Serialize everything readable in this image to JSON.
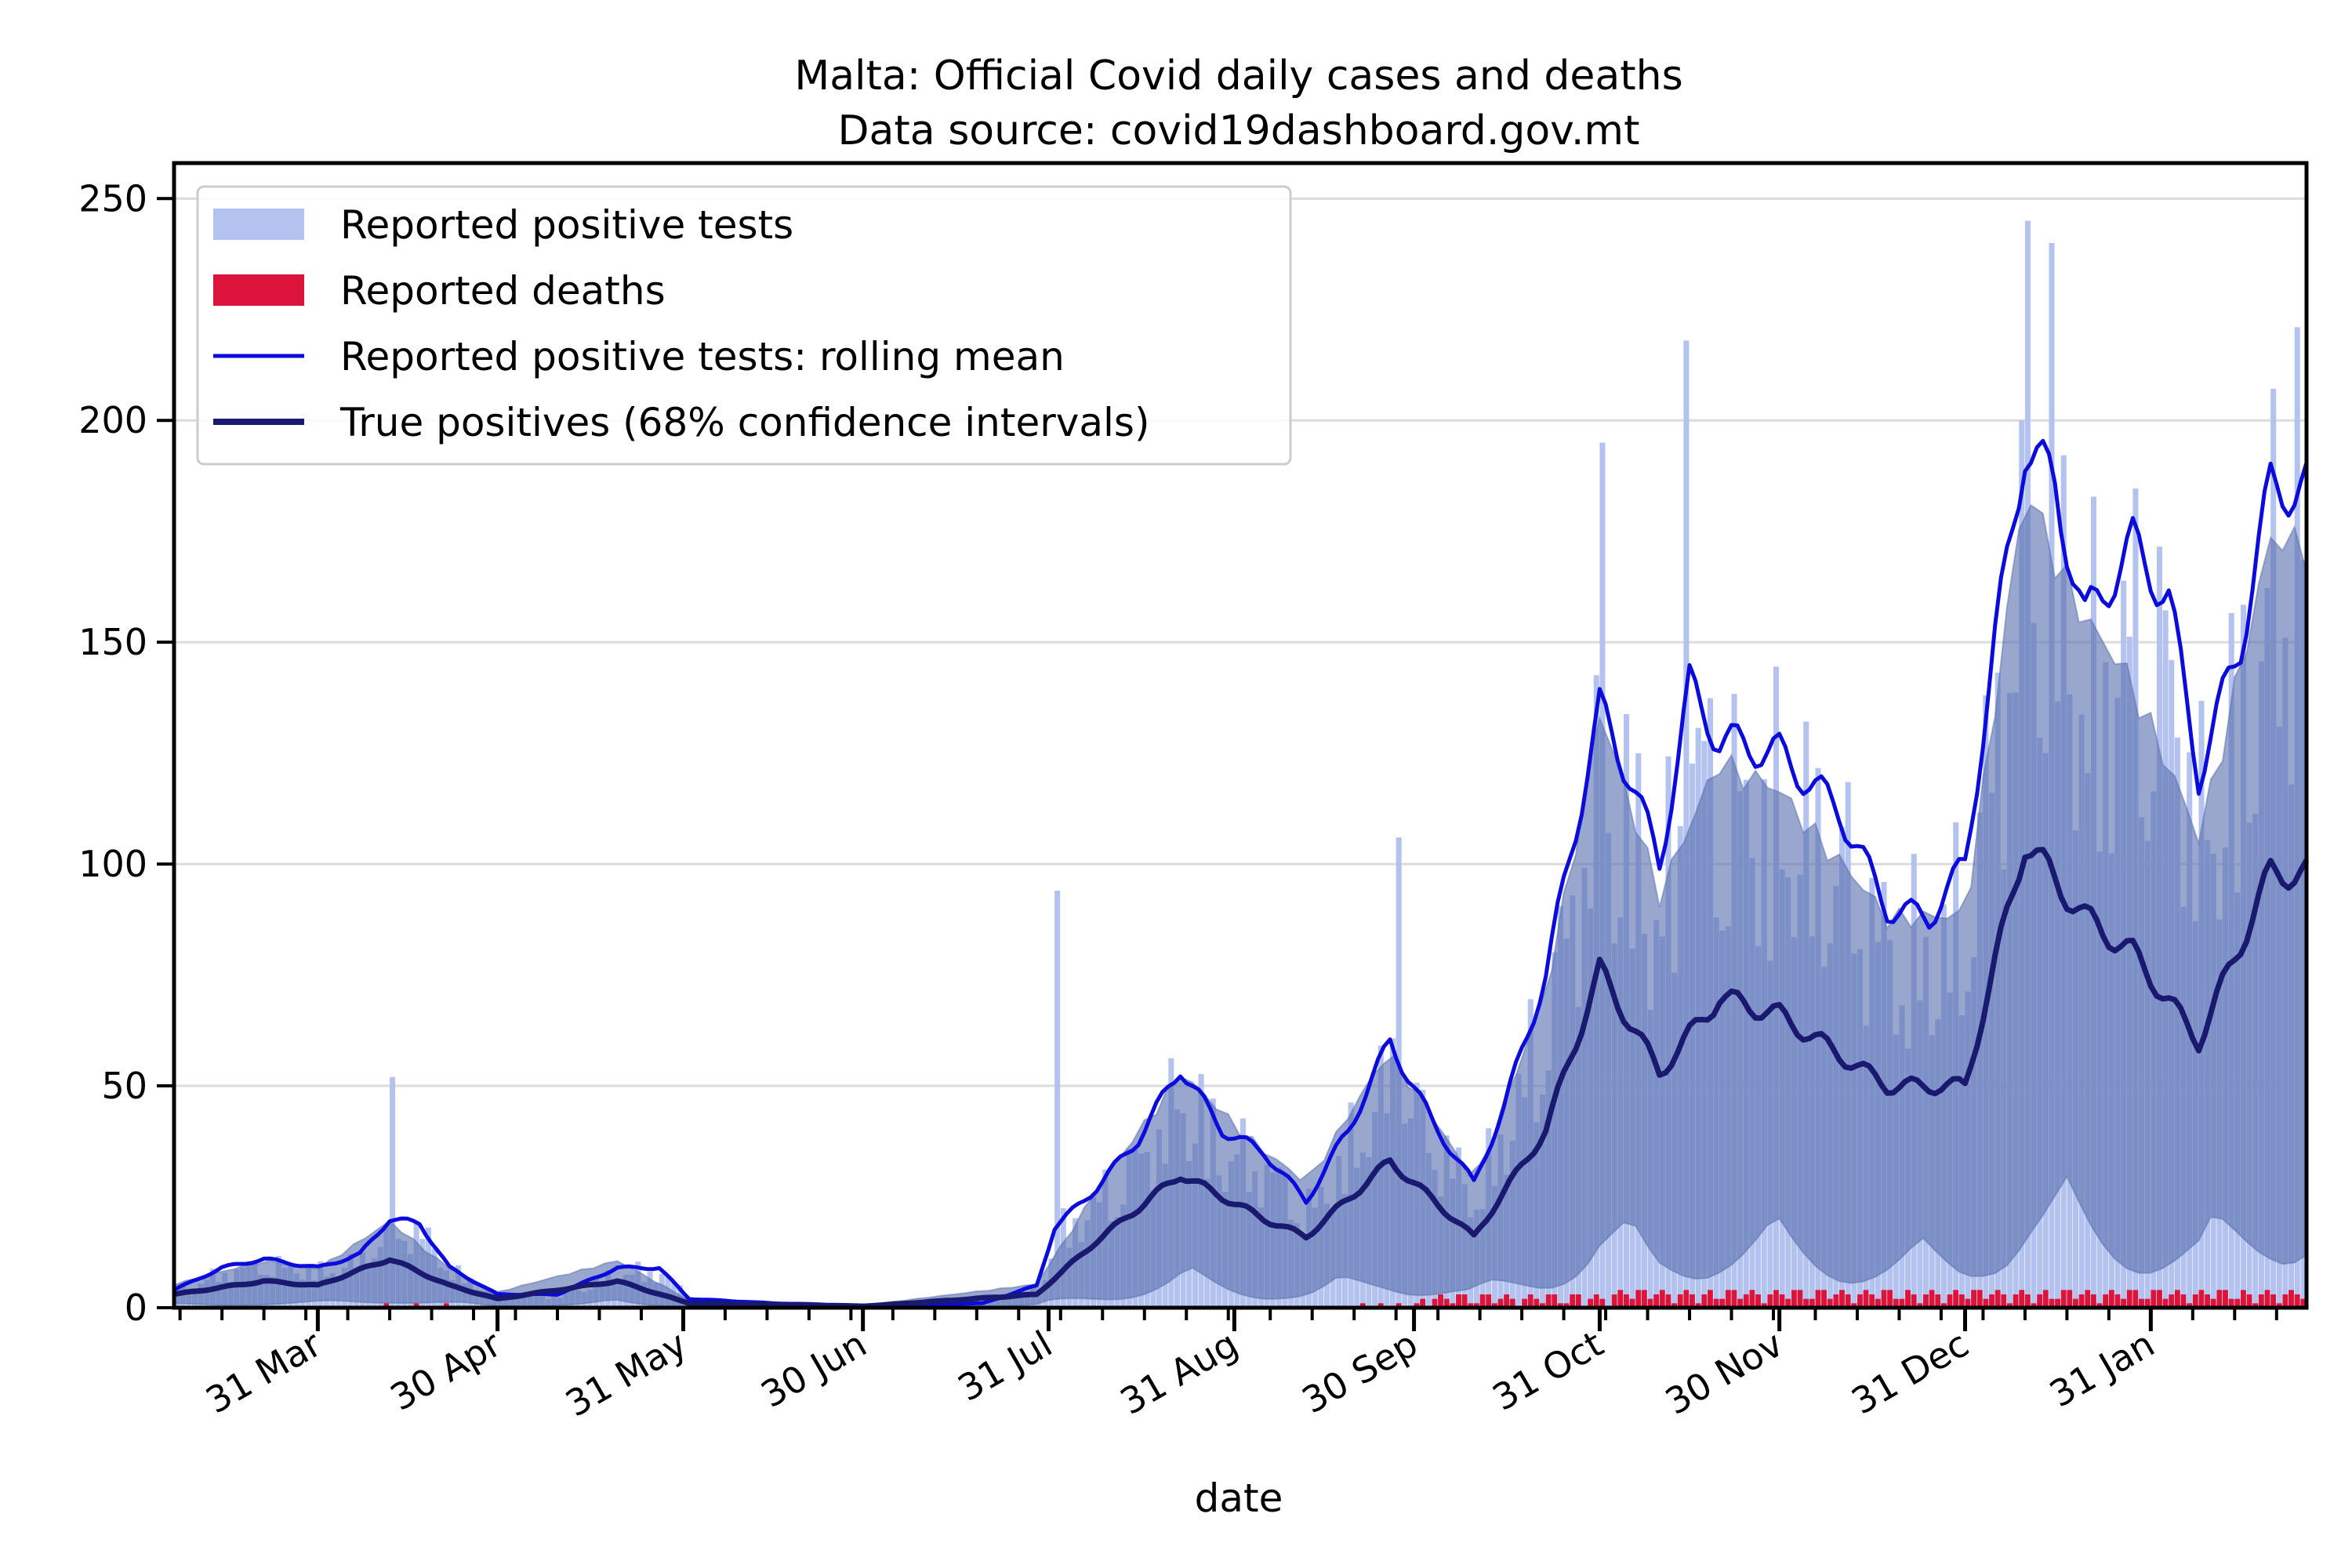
{
  "chart_data": {
    "type": "bar",
    "title": "Malta: Official Covid daily cases and deaths",
    "subtitle": "Data source: covid19dashboard.gov.mt",
    "xlabel": "date",
    "ylabel": "",
    "ylim": [
      0,
      258
    ],
    "yticks": [
      0,
      50,
      100,
      150,
      200,
      250
    ],
    "xticks": [
      "31 Mar",
      "30 Apr",
      "31 May",
      "30 Jun",
      "31 Jul",
      "31 Aug",
      "30 Sep",
      "31 Oct",
      "30 Nov",
      "31 Dec",
      "31 Jan"
    ],
    "grid": "horizontal",
    "legend_position": "top-left",
    "colors": {
      "positive_tests": "#b3c2ef",
      "deaths": "#dc143c",
      "rolling_mean": "#0b0bdb",
      "true_positives": "#191970",
      "confidence_band": "#5a6fae",
      "grid": "#dcdcdc"
    },
    "legend": [
      {
        "label": "Reported positive tests",
        "kind": "patch",
        "color": "#b3c2ef"
      },
      {
        "label": "Reported deaths",
        "kind": "patch",
        "color": "#dc143c"
      },
      {
        "label": "Reported positive tests: rolling mean",
        "kind": "line",
        "color": "#0b0bdb"
      },
      {
        "label": "True positives (68% confidence intervals)",
        "kind": "line",
        "color": "#191970"
      }
    ],
    "series": [
      {
        "name": "Reported positives tests rolling mean",
        "label": "Reported positive tests: rolling mean",
        "points": [
          [
            "2020-03-07",
            4
          ],
          [
            "2020-03-15",
            9
          ],
          [
            "2020-03-22",
            11
          ],
          [
            "2020-03-31",
            9
          ],
          [
            "2020-04-07",
            12
          ],
          [
            "2020-04-12",
            20
          ],
          [
            "2020-04-17",
            19
          ],
          [
            "2020-04-22",
            9
          ],
          [
            "2020-04-30",
            3
          ],
          [
            "2020-05-10",
            3
          ],
          [
            "2020-05-20",
            9
          ],
          [
            "2020-05-27",
            9
          ],
          [
            "2020-06-01",
            2
          ],
          [
            "2020-06-15",
            1
          ],
          [
            "2020-06-30",
            0.5
          ],
          [
            "2020-07-20",
            1
          ],
          [
            "2020-07-29",
            5
          ],
          [
            "2020-08-01",
            18
          ],
          [
            "2020-08-08",
            27
          ],
          [
            "2020-08-15",
            38
          ],
          [
            "2020-08-22",
            54
          ],
          [
            "2020-08-29",
            40
          ],
          [
            "2020-09-05",
            35
          ],
          [
            "2020-09-12",
            24
          ],
          [
            "2020-09-19",
            40
          ],
          [
            "2020-09-26",
            60
          ],
          [
            "2020-10-03",
            42
          ],
          [
            "2020-10-10",
            28
          ],
          [
            "2020-10-15",
            45
          ],
          [
            "2020-10-22",
            75
          ],
          [
            "2020-10-31",
            135
          ],
          [
            "2020-11-05",
            120
          ],
          [
            "2020-11-10",
            100
          ],
          [
            "2020-11-15",
            140
          ],
          [
            "2020-11-20",
            128
          ],
          [
            "2020-11-30",
            125
          ],
          [
            "2020-12-10",
            112
          ],
          [
            "2020-12-18",
            90
          ],
          [
            "2020-12-25",
            88
          ],
          [
            "2020-12-31",
            100
          ],
          [
            "2021-01-05",
            150
          ],
          [
            "2021-01-10",
            195
          ],
          [
            "2021-01-15",
            185
          ],
          [
            "2021-01-20",
            155
          ],
          [
            "2021-01-28",
            172
          ],
          [
            "2021-02-03",
            160
          ],
          [
            "2021-02-08",
            120
          ],
          [
            "2021-02-15",
            150
          ],
          [
            "2021-02-20",
            185
          ]
        ]
      },
      {
        "name": "True positives",
        "label": "True positives (68% confidence intervals)",
        "points": [
          [
            "2020-03-07",
            3
          ],
          [
            "2020-03-22",
            6
          ],
          [
            "2020-03-31",
            5
          ],
          [
            "2020-04-12",
            11
          ],
          [
            "2020-04-22",
            5
          ],
          [
            "2020-04-30",
            2
          ],
          [
            "2020-05-20",
            6
          ],
          [
            "2020-06-01",
            1
          ],
          [
            "2020-06-30",
            0.3
          ],
          [
            "2020-07-29",
            3
          ],
          [
            "2020-08-08",
            15
          ],
          [
            "2020-08-22",
            30
          ],
          [
            "2020-09-05",
            20
          ],
          [
            "2020-09-12",
            16
          ],
          [
            "2020-09-26",
            33
          ],
          [
            "2020-10-10",
            16
          ],
          [
            "2020-10-22",
            40
          ],
          [
            "2020-10-31",
            76
          ],
          [
            "2020-11-10",
            53
          ],
          [
            "2020-11-20",
            70
          ],
          [
            "2020-11-30",
            66
          ],
          [
            "2020-12-18",
            50
          ],
          [
            "2020-12-31",
            50
          ],
          [
            "2021-01-10",
            105
          ],
          [
            "2021-01-20",
            88
          ],
          [
            "2021-01-28",
            80
          ],
          [
            "2021-02-08",
            60
          ],
          [
            "2021-02-20",
            98
          ]
        ]
      },
      {
        "name": "Reported deaths",
        "label": "Reported deaths",
        "summary": "mostly 0-5 per day, first appearing in April 2020 and continuing from October 2020"
      },
      {
        "name": "Reported positive tests",
        "label": "Reported positive tests",
        "notable_peaks": [
          [
            "2020-04-12",
            52
          ],
          [
            "2020-08-01",
            94
          ],
          [
            "2020-09-27",
            106
          ],
          [
            "2020-10-31",
            195
          ],
          [
            "2020-11-14",
            218
          ],
          [
            "2021-01-10",
            245
          ],
          [
            "2021-01-14",
            240
          ],
          [
            "2021-02-24",
            221
          ]
        ]
      }
    ]
  }
}
